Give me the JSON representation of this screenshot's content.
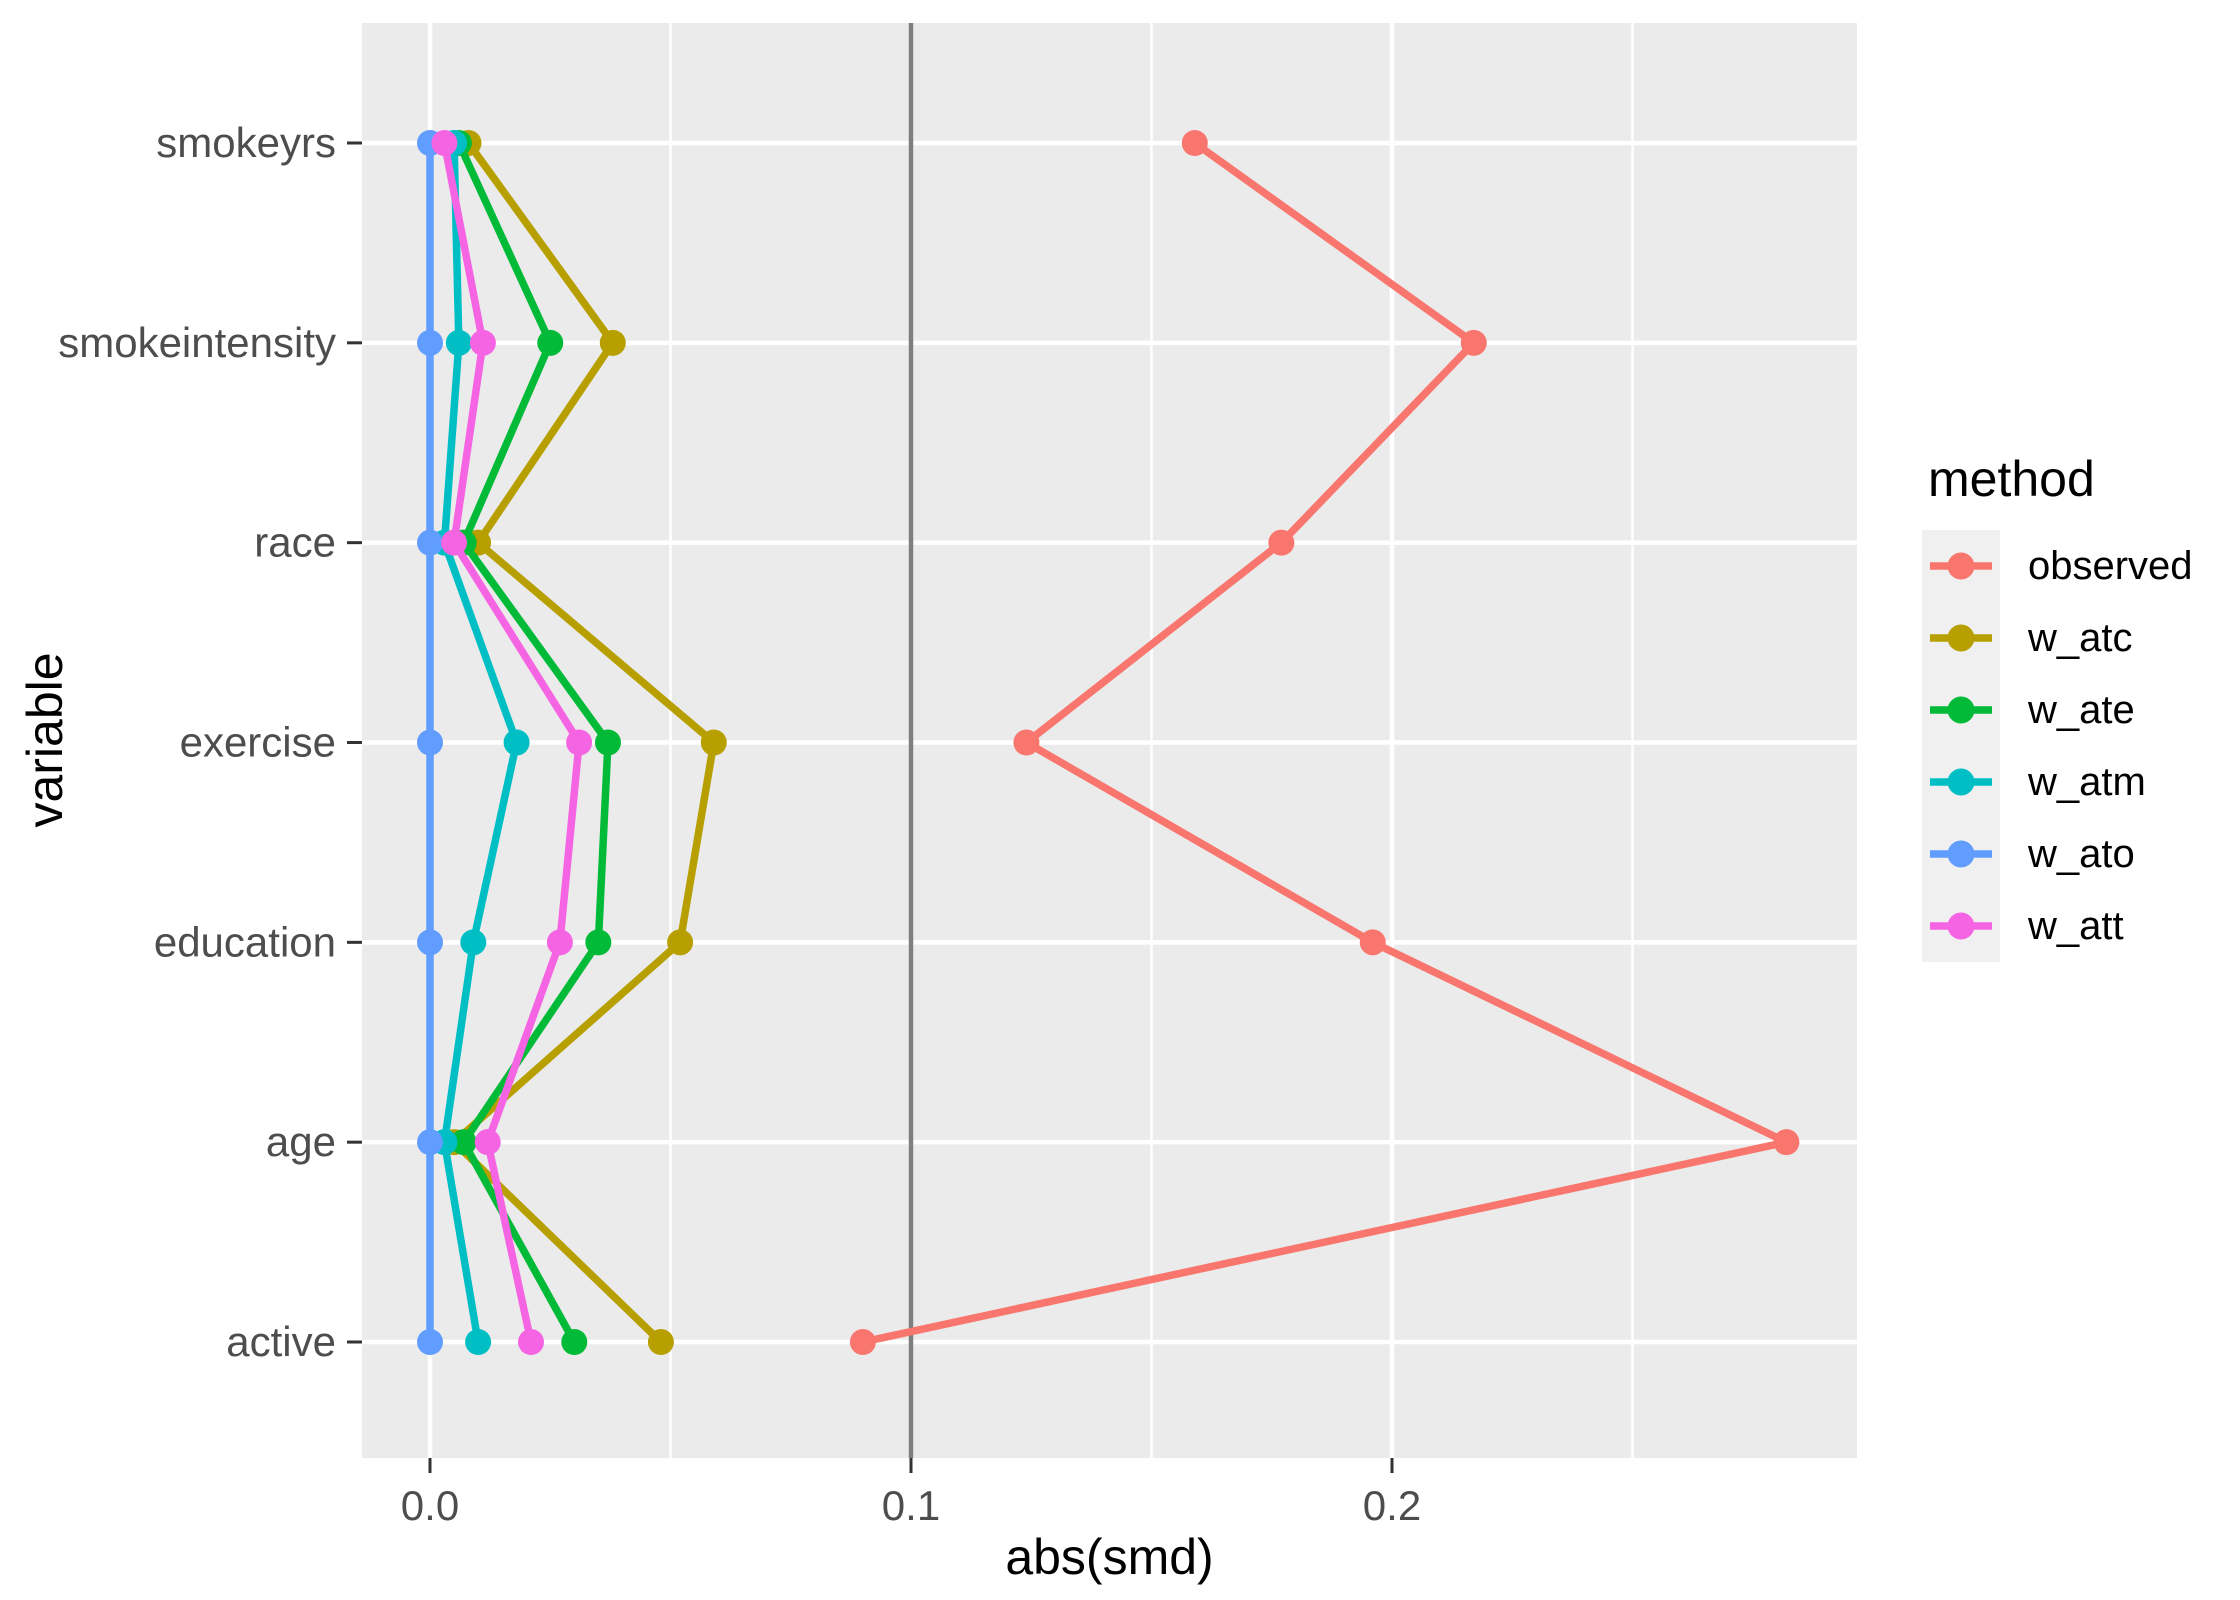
{
  "chart_data": {
    "type": "line",
    "title": "",
    "xlabel": "abs(smd)",
    "ylabel": "variable",
    "categories": [
      "smokeyrs",
      "smokeintensity",
      "race",
      "exercise",
      "education",
      "age",
      "active"
    ],
    "x_ticks": {
      "major": [
        0.0,
        0.1,
        0.2
      ],
      "major_labels": [
        "0.0",
        "0.1",
        "0.2"
      ],
      "minor": [
        0.05,
        0.15,
        0.25
      ]
    },
    "xlim": [
      -0.014,
      0.297
    ],
    "reference_line": {
      "x": 0.1,
      "color": "#7f7f7f"
    },
    "grid": {
      "color": "#ffffff",
      "panel_background": "#EBEBEB"
    },
    "legend": {
      "title": "method",
      "position": "right",
      "key_background": "#F0F0F0"
    },
    "series": [
      {
        "name": "observed",
        "color": "#F8766D",
        "values": [
          0.159,
          0.217,
          0.177,
          0.124,
          0.196,
          0.282,
          0.09
        ]
      },
      {
        "name": "w_atc",
        "color": "#B79F00",
        "values": [
          0.008,
          0.038,
          0.01,
          0.059,
          0.052,
          0.005,
          0.048
        ]
      },
      {
        "name": "w_ate",
        "color": "#00BA38",
        "values": [
          0.006,
          0.025,
          0.007,
          0.037,
          0.035,
          0.007,
          0.03
        ]
      },
      {
        "name": "w_atm",
        "color": "#00BFC4",
        "values": [
          0.005,
          0.006,
          0.003,
          0.018,
          0.009,
          0.003,
          0.01
        ]
      },
      {
        "name": "w_ato",
        "color": "#619CFF",
        "values": [
          0.0,
          0.0,
          0.0,
          0.0,
          0.0,
          0.0,
          0.0
        ]
      },
      {
        "name": "w_att",
        "color": "#F564E3",
        "values": [
          0.003,
          0.011,
          0.005,
          0.031,
          0.027,
          0.012,
          0.021
        ]
      }
    ],
    "text_colors": {
      "axis_text": "#4D4D4D",
      "axis_title": "#000000",
      "tick_marks": "#333333"
    }
  }
}
